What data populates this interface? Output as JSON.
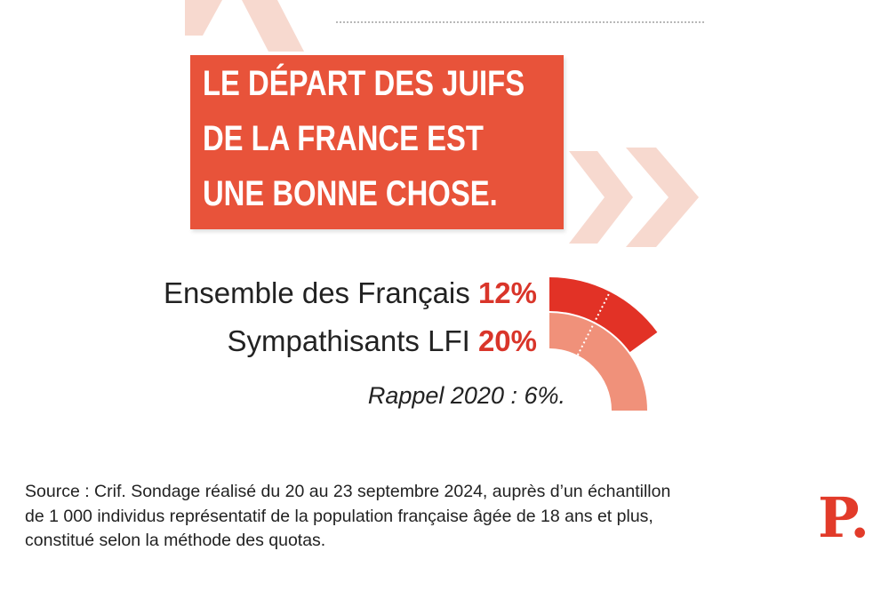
{
  "headline": {
    "lines": [
      "LE DÉPART DES JUIFS",
      "DE LA FRANCE EST",
      "UNE BONNE CHOSE."
    ]
  },
  "chart_data": {
    "type": "radial-bar",
    "categories": [
      "Ensemble des Français",
      "Sympathisants LFI"
    ],
    "values": [
      12,
      20
    ],
    "unit": "%",
    "value_labels": [
      "12%",
      "20%"
    ],
    "reference": {
      "label": "Rappel 2020 : 6%.",
      "value": 6
    },
    "colors": [
      "#e23226",
      "#f0917a"
    ]
  },
  "source": {
    "lines": [
      "Source : Crif. Sondage réalisé du 20 au 23 septembre 2024, auprès d’un échantillon",
      "de 1 000 individus représentatif de la population française âgée de 18 ans et plus,",
      "constitué selon la méthode des quotas."
    ]
  },
  "logo": {
    "text": "P."
  },
  "colors": {
    "accent": "#e8533a",
    "bar_all": "#e23226",
    "bar_lfi": "#f0917a",
    "chevrons": "#f7d9cf",
    "logo": "#e23b2a"
  }
}
